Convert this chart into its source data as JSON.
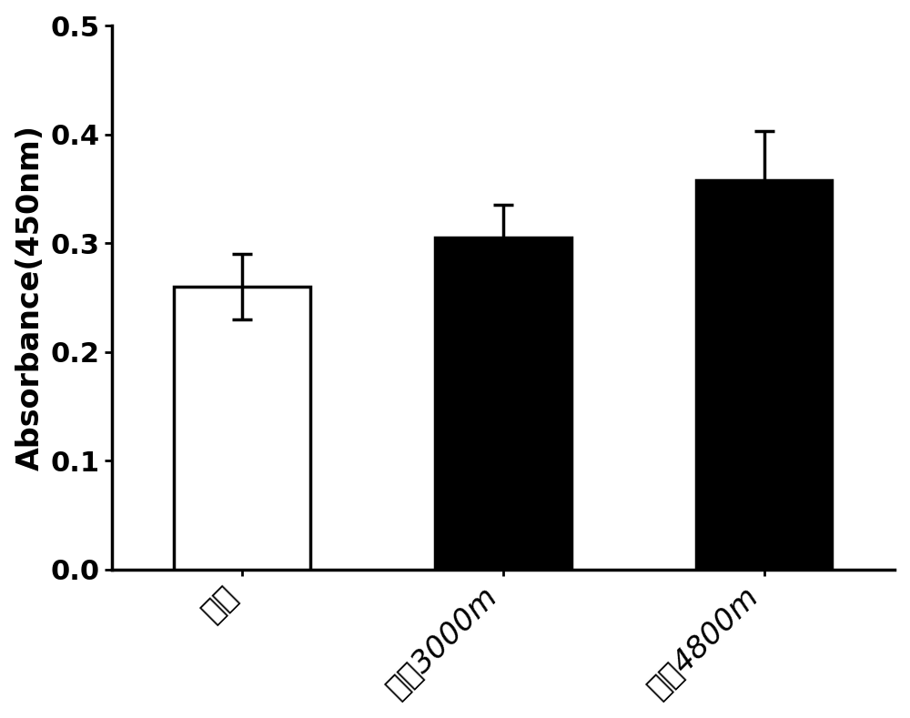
{
  "x_positions": [
    1,
    2,
    3
  ],
  "values": [
    0.26,
    0.305,
    0.358
  ],
  "errors": [
    0.03,
    0.03,
    0.045
  ],
  "bar_colors": [
    "#ffffff",
    "#000000",
    "#000000"
  ],
  "bar_edgecolors": [
    "#000000",
    "#000000",
    "#000000"
  ],
  "bar_width": 0.52,
  "ylim": [
    0.0,
    0.5
  ],
  "yticks": [
    0.0,
    0.1,
    0.2,
    0.3,
    0.4,
    0.5
  ],
  "ylabel": "Absorbance(450nm)",
  "xlabel_labels": [
    "常氧",
    "海扙3000m",
    "海扙4800m"
  ],
  "background_color": "#ffffff",
  "ylabel_fontsize": 24,
  "tick_fontsize": 22,
  "xtick_fontsize": 24,
  "error_capsize": 8,
  "error_linewidth": 2.5,
  "bar_linewidth": 2.5
}
